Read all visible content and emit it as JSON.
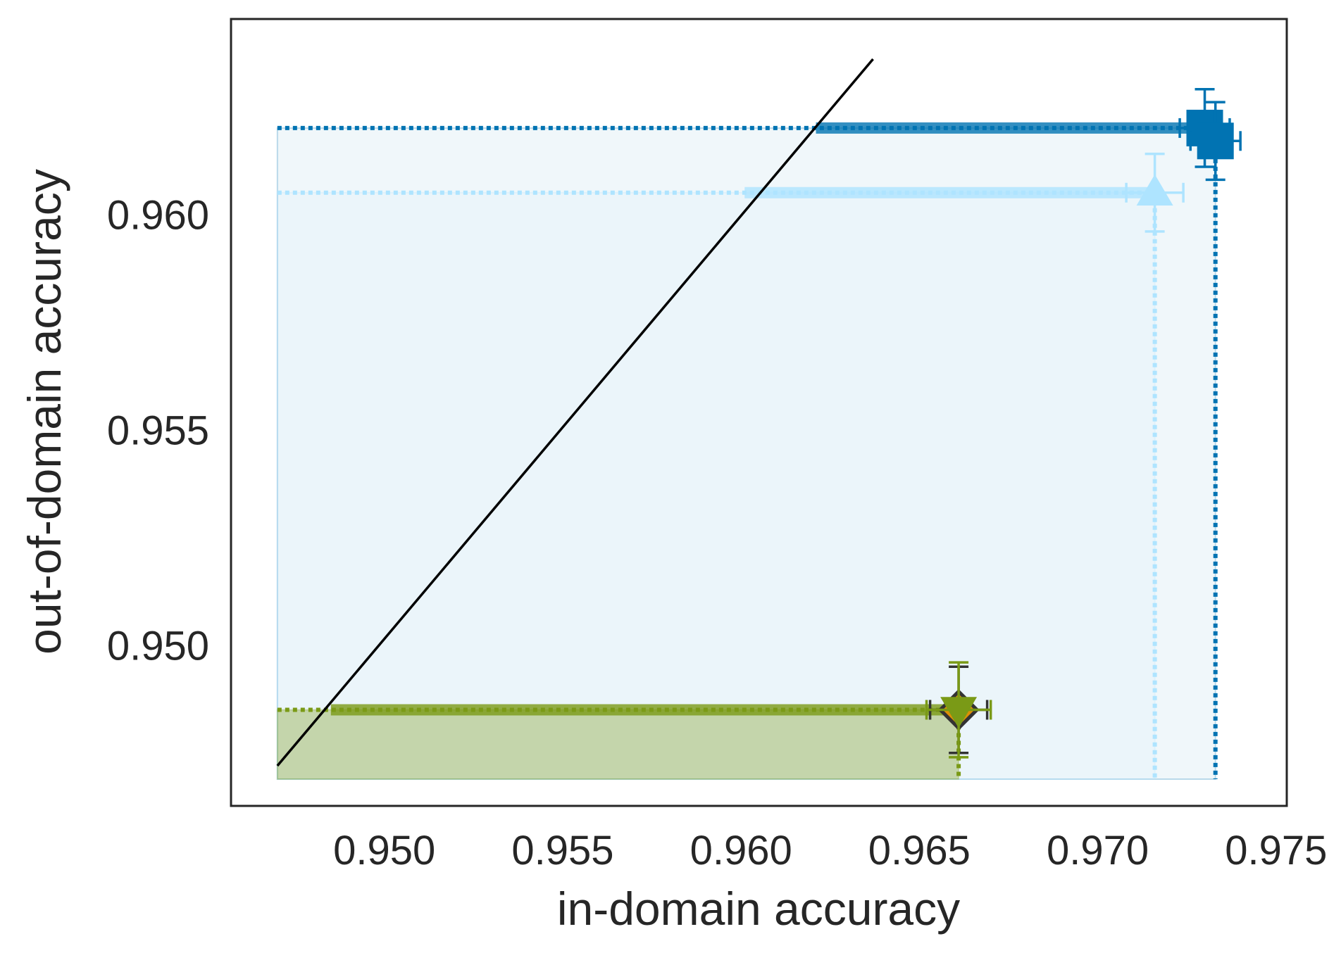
{
  "chart_data": {
    "type": "scatter",
    "xlabel": "in-domain accuracy",
    "ylabel": "out-of-domain accuracy",
    "xlim": [
      0.9457,
      0.9753
    ],
    "ylim": [
      0.94627,
      0.96453
    ],
    "xticks": [
      "0.950",
      "0.955",
      "0.960",
      "0.965",
      "0.970",
      "0.975"
    ],
    "yticks": [
      "0.950",
      "0.955",
      "0.960"
    ],
    "grid": false,
    "legend": "none",
    "reference_line": {
      "x": [
        0.947,
        0.9637
      ],
      "y": [
        0.9472,
        0.9636
      ],
      "color": "#000000"
    },
    "series": [
      {
        "marker": "square",
        "color": "#0173b2",
        "points": [
          {
            "x": 0.973,
            "y": 0.962,
            "xerr": 0.0007,
            "yerr": 0.0009
          },
          {
            "x": 0.9733,
            "y": 0.9617,
            "xerr": 0.0007,
            "yerr": 0.0009
          }
        ],
        "front_y": 0.962,
        "front_x": 0.9733,
        "front_start_x": 0.9621
      },
      {
        "marker": "triangle-up",
        "color": "#aee4ff",
        "points": [
          {
            "x": 0.9716,
            "y": 0.9605,
            "xerr": 0.0008,
            "yerr": 0.0009
          }
        ],
        "front_y": 0.9605,
        "front_x": 0.9716,
        "front_start_x": 0.9601
      },
      {
        "marker": "diamond",
        "color": "#333333",
        "face_color": "#de8f05",
        "points": [
          {
            "x": 0.9661,
            "y": 0.9485,
            "xerr": 0.0008,
            "yerr": 0.001
          }
        ]
      },
      {
        "marker": "triangle-down",
        "color": "#7a9a16",
        "points": [
          {
            "x": 0.9661,
            "y": 0.9485,
            "xerr": 0.0009,
            "yerr": 0.0011
          }
        ],
        "front_y": 0.9485,
        "front_x": 0.9661,
        "front_start_x": 0.9485
      }
    ]
  }
}
